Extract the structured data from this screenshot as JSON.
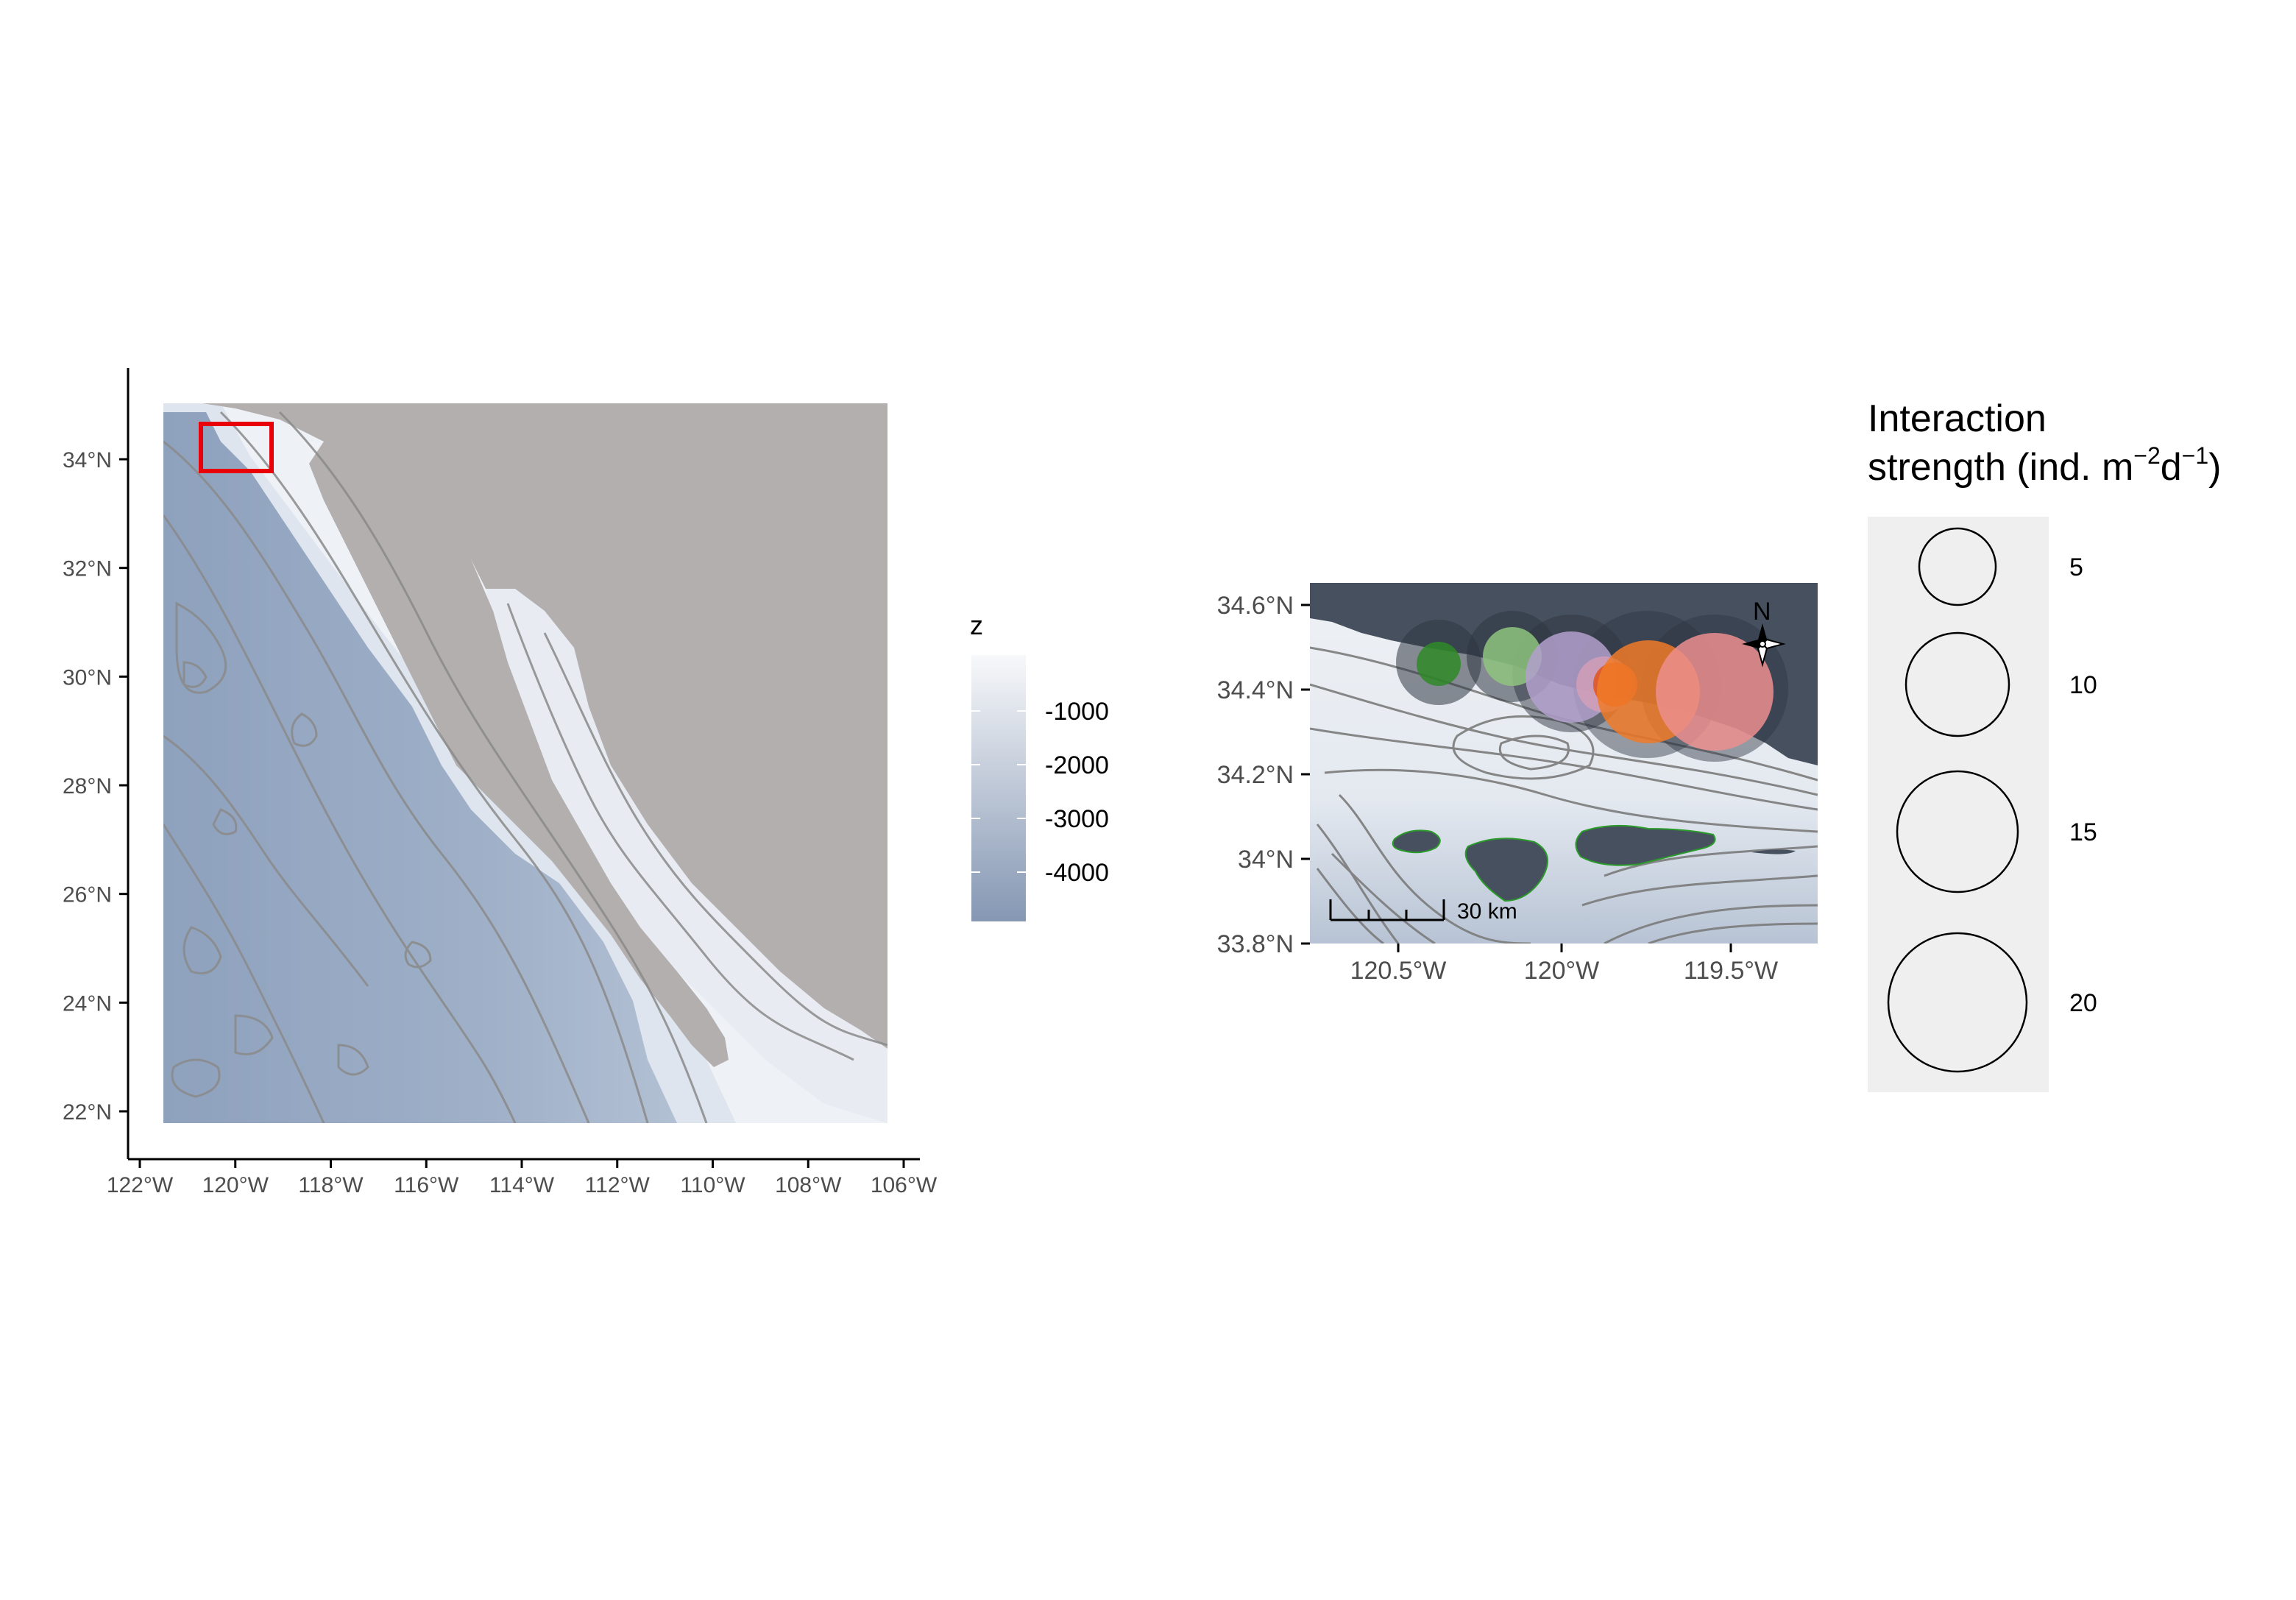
{
  "overview_map": {
    "x_ticks": [
      "122°W",
      "120°W",
      "118°W",
      "116°W",
      "114°W",
      "112°W",
      "110°W",
      "108°W",
      "106°W"
    ],
    "y_ticks": [
      "22°N",
      "24°N",
      "26°N",
      "28°N",
      "30°N",
      "32°N",
      "34°N"
    ],
    "land_color": "#b4afaf",
    "shallow_color": "#f5f7fa",
    "deep_color": "#8ea1bd",
    "contour_color": "#8a8a8a",
    "inset_box_color": "#e8000b"
  },
  "depth_legend": {
    "title": "z",
    "labels": [
      "-1000",
      "-2000",
      "-3000",
      "-4000"
    ],
    "gradient_top": "#f7f8fa",
    "gradient_bottom": "#8597b3"
  },
  "inset_map": {
    "x_ticks": [
      "120.5°W",
      "120°W",
      "119.5°W"
    ],
    "y_ticks": [
      "34.6°N",
      "34.4°N",
      "34.2°N",
      "34°N",
      "33.8°N"
    ],
    "land_color": "#46505f",
    "scale_bar_label": "30 km",
    "north_arrow_label": "N",
    "icon": "compass-rose-icon"
  },
  "size_legend": {
    "title_line1": "Interaction",
    "title_line2_prefix": "strength (ind. m",
    "title_sup1": "−2",
    "title_mid": "d",
    "title_sup2": "−1",
    "title_suffix": ")",
    "labels": [
      "5",
      "10",
      "15",
      "20"
    ],
    "background": "#efefef"
  }
}
